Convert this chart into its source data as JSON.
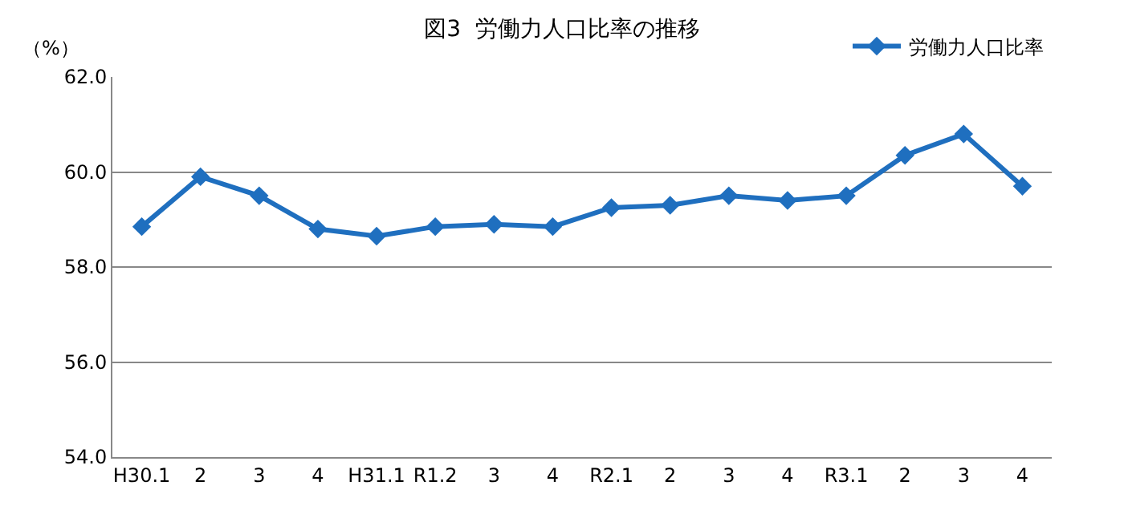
{
  "chart_data": {
    "type": "line",
    "title": "図3  労働力人口比率の推移",
    "ylabel": "（%）",
    "categories": [
      "H30.1",
      "2",
      "3",
      "4",
      "H31.1",
      "R1.2",
      "3",
      "4",
      "R2.1",
      "2",
      "3",
      "4",
      "R3.1",
      "2",
      "3",
      "4"
    ],
    "series": [
      {
        "name": "労働力人口比率",
        "color": "#1f6fbf",
        "values": [
          58.85,
          59.9,
          59.5,
          58.8,
          58.65,
          58.85,
          58.9,
          58.85,
          59.25,
          59.3,
          59.5,
          59.4,
          59.5,
          60.35,
          60.8,
          59.7
        ]
      }
    ],
    "ylim": [
      54,
      62
    ],
    "yticks": [
      {
        "value": 54,
        "label": "54.0"
      },
      {
        "value": 56,
        "label": "56.0"
      },
      {
        "value": 58,
        "label": "58.0"
      },
      {
        "value": 60,
        "label": "60.0"
      },
      {
        "value": 62,
        "label": "62.0"
      }
    ],
    "grid": "y",
    "legend": "top right",
    "marker": "diamond",
    "line_style": "solid"
  }
}
